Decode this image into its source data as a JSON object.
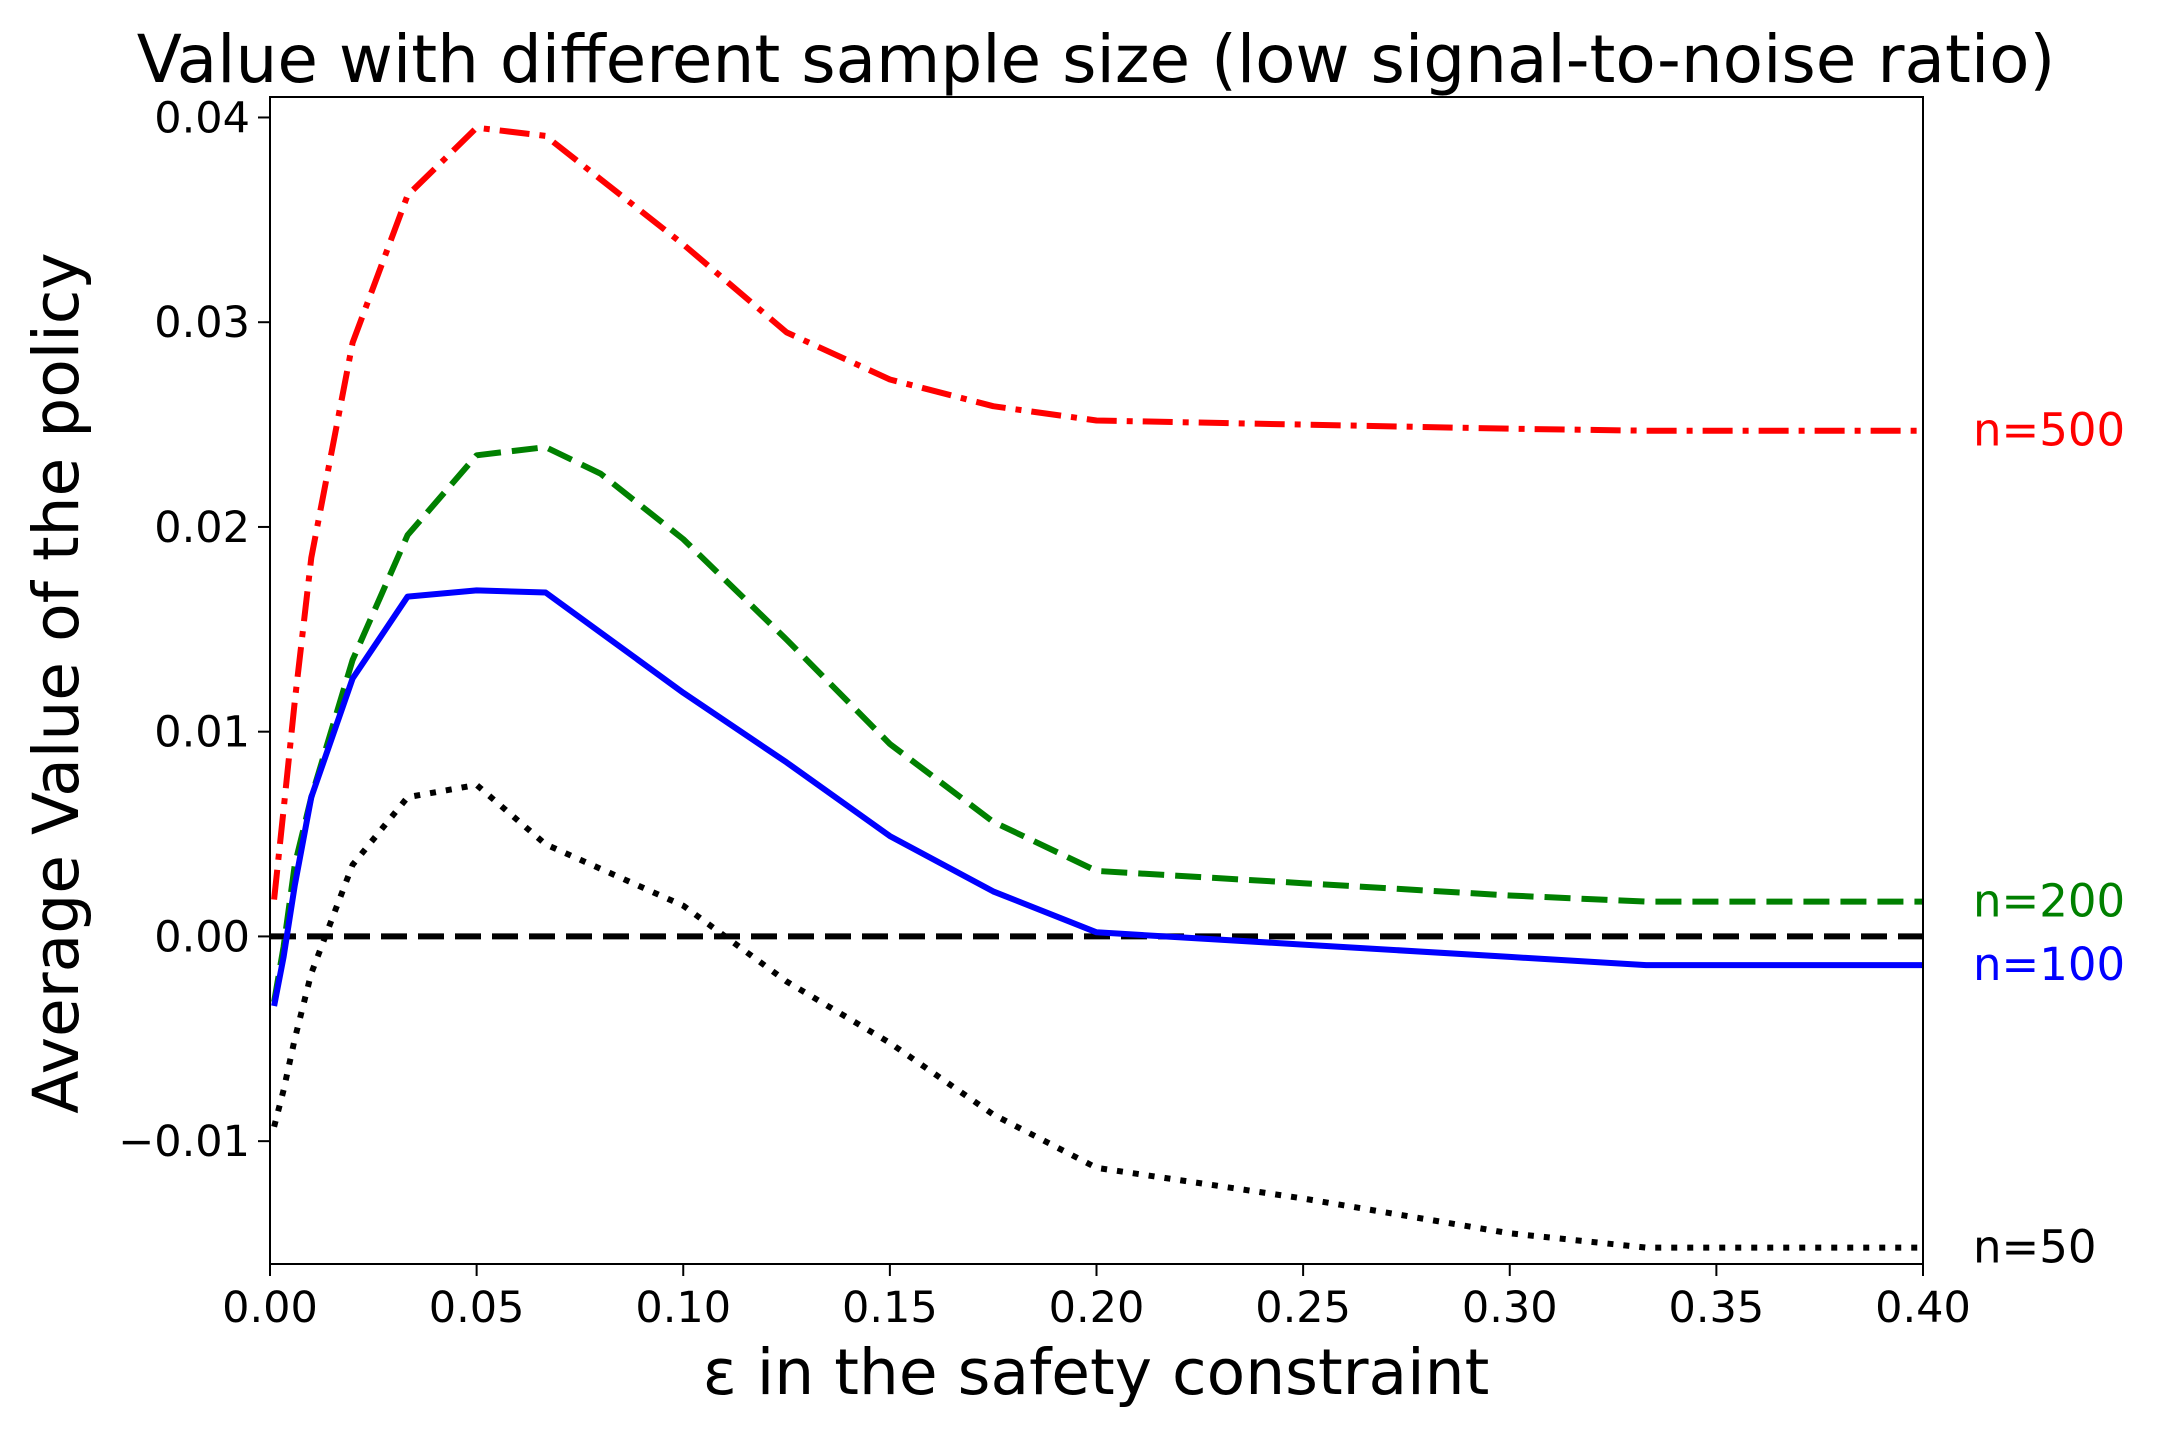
{
  "chart_data": {
    "type": "line",
    "title": "Value with different sample size (low signal-to-noise ratio)",
    "xlabel": "ε in the safety constraint",
    "ylabel": "Average Value of the policy",
    "xlim": [
      0.0,
      0.4
    ],
    "ylim": [
      -0.016,
      0.041
    ],
    "x_ticks": [
      0.0,
      0.05,
      0.1,
      0.15,
      0.2,
      0.25,
      0.3,
      0.35,
      0.4
    ],
    "x_tick_labels": [
      "0.00",
      "0.05",
      "0.10",
      "0.15",
      "0.20",
      "0.25",
      "0.30",
      "0.35",
      "0.40"
    ],
    "y_ticks": [
      -0.01,
      0.0,
      0.01,
      0.02,
      0.03,
      0.04
    ],
    "y_tick_labels": [
      "−0.01",
      "0.00",
      "0.01",
      "0.02",
      "0.03",
      "0.04"
    ],
    "reference_line": {
      "y": 0.0,
      "color": "#000000",
      "style": "dashed"
    },
    "series": [
      {
        "name": "n=500",
        "label": "n=500",
        "color": "#ff0000",
        "style": "dashdot",
        "x": [
          0.001,
          0.0033,
          0.006,
          0.01,
          0.02,
          0.0333,
          0.05,
          0.0667,
          0.1,
          0.125,
          0.15,
          0.175,
          0.2,
          0.25,
          0.3,
          0.333,
          0.35,
          0.4
        ],
        "y": [
          0.0018,
          0.0062,
          0.0115,
          0.0185,
          0.029,
          0.0362,
          0.0395,
          0.0391,
          0.0338,
          0.0295,
          0.0272,
          0.0259,
          0.0252,
          0.025,
          0.0248,
          0.0247,
          0.0247,
          0.0247
        ]
      },
      {
        "name": "n=200",
        "label": "n=200",
        "color": "#008000",
        "style": "dashed",
        "x": [
          0.001,
          0.0033,
          0.006,
          0.01,
          0.02,
          0.0333,
          0.05,
          0.0667,
          0.08,
          0.1,
          0.125,
          0.15,
          0.175,
          0.2,
          0.25,
          0.3,
          0.333,
          0.35,
          0.4
        ],
        "y": [
          -0.0032,
          -0.0005,
          0.0035,
          0.0068,
          0.0135,
          0.0196,
          0.0235,
          0.0239,
          0.0226,
          0.0194,
          0.0145,
          0.0094,
          0.0056,
          0.0032,
          0.0026,
          0.002,
          0.0017,
          0.0017,
          0.0017
        ]
      },
      {
        "name": "n=100",
        "label": "n=100",
        "color": "#0000ff",
        "style": "solid",
        "x": [
          0.001,
          0.0033,
          0.006,
          0.01,
          0.02,
          0.0333,
          0.05,
          0.0667,
          0.1,
          0.125,
          0.15,
          0.175,
          0.2,
          0.25,
          0.3,
          0.333,
          0.35,
          0.4
        ],
        "y": [
          -0.0034,
          -0.001,
          0.0025,
          0.0068,
          0.0126,
          0.0166,
          0.0169,
          0.0168,
          0.0119,
          0.0085,
          0.0049,
          0.0022,
          0.0002,
          -0.0004,
          -0.001,
          -0.0014,
          -0.0014,
          -0.0014
        ]
      },
      {
        "name": "n=50",
        "label": "n=50",
        "color": "#000000",
        "style": "dotted",
        "x": [
          0.001,
          0.0033,
          0.006,
          0.01,
          0.02,
          0.0333,
          0.05,
          0.0667,
          0.1,
          0.125,
          0.15,
          0.175,
          0.2,
          0.25,
          0.3,
          0.333,
          0.35,
          0.4
        ],
        "y": [
          -0.0093,
          -0.0075,
          -0.005,
          -0.0018,
          0.0035,
          0.0068,
          0.0074,
          0.0045,
          0.0015,
          -0.0022,
          -0.0052,
          -0.0087,
          -0.0113,
          -0.0128,
          -0.0145,
          -0.0152,
          -0.0152,
          -0.0152
        ]
      }
    ]
  }
}
